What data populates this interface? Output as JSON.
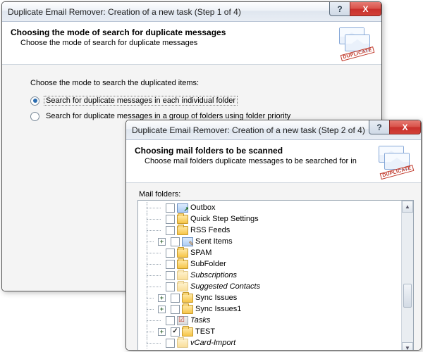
{
  "dialog1": {
    "title": "Duplicate Email Remover: Creation of a new task (Step 1 of 4)",
    "header_title": "Choosing the mode of search for duplicate messages",
    "header_sub": "Choose the mode of search for duplicate messages",
    "stamp": "DUPLICATE",
    "prompt": "Choose the mode to search the duplicated items:",
    "option1": "Search for duplicate messages in each individual folder",
    "option2": "Search for duplicate messages in a group of folders using folder priority",
    "help": "?",
    "close": "X"
  },
  "dialog2": {
    "title": "Duplicate Email Remover: Creation of a new task (Step 2 of 4)",
    "header_title": "Choosing mail folders to be scanned",
    "header_sub": "Choose mail folders duplicate messages to be searched for in",
    "stamp": "DUPLICATE",
    "mf_label": "Mail folders:",
    "help": "?",
    "close": "X",
    "items": [
      {
        "label": "Outbox",
        "icon": "outbox",
        "expander": false,
        "checked": false,
        "italic": false
      },
      {
        "label": "Quick Step Settings",
        "icon": "folder",
        "expander": false,
        "checked": false,
        "italic": false
      },
      {
        "label": "RSS Feeds",
        "icon": "folder",
        "expander": false,
        "checked": false,
        "italic": false
      },
      {
        "label": "Sent Items",
        "icon": "sent",
        "expander": true,
        "checked": false,
        "italic": false
      },
      {
        "label": "SPAM",
        "icon": "folder",
        "expander": false,
        "checked": false,
        "italic": false
      },
      {
        "label": "SubFolder",
        "icon": "folder",
        "expander": false,
        "checked": false,
        "italic": false
      },
      {
        "label": "Subscriptions",
        "icon": "folder dim",
        "expander": false,
        "checked": false,
        "italic": true
      },
      {
        "label": "Suggested Contacts",
        "icon": "folder dim",
        "expander": false,
        "checked": false,
        "italic": true
      },
      {
        "label": "Sync Issues",
        "icon": "folder",
        "expander": true,
        "checked": false,
        "italic": false
      },
      {
        "label": "Sync Issues1",
        "icon": "folder",
        "expander": true,
        "checked": false,
        "italic": false
      },
      {
        "label": "Tasks",
        "icon": "tasks",
        "expander": false,
        "checked": false,
        "italic": true
      },
      {
        "label": "TEST",
        "icon": "folder",
        "expander": true,
        "checked": true,
        "italic": false
      },
      {
        "label": "vCard-Import",
        "icon": "folder dim",
        "expander": false,
        "checked": false,
        "italic": true
      }
    ]
  }
}
